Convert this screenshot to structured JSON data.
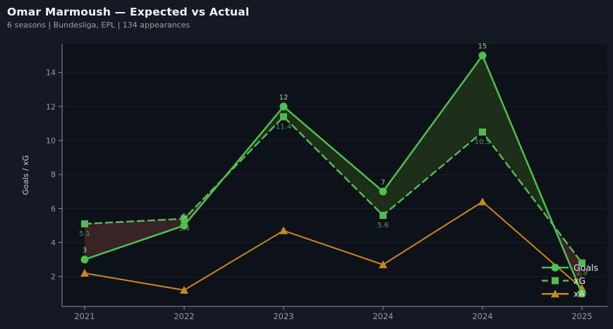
{
  "header": {
    "title": "Omar Marmoush — Expected vs Actual",
    "subtitle": "6 seasons | Bundesliga, EPL | 134 appearances"
  },
  "colors": {
    "background": "#141923",
    "plot_bg": "#0d1118",
    "grid": "#1a2029",
    "spine": "#8a919c",
    "tick_text": "#939aa6",
    "axis_label": "#c6ccd4",
    "title": "#f2f4f7",
    "subtitle": "#98a0aa",
    "legend_text": "#e6e9ed",
    "goals_label": "#8fe08f",
    "xg_label": "#4f9e4f"
  },
  "chart_data": {
    "type": "line",
    "title": "Omar Marmoush — Expected vs Actual",
    "subtitle": "6 seasons | Bundesliga, EPL | 134 appearances",
    "xlabel": "",
    "ylabel": "Goals / xG",
    "categories": [
      "2021",
      "2022",
      "2023",
      "2024",
      "2024",
      "2025"
    ],
    "series": [
      {
        "name": "Goals",
        "values": [
          3,
          5,
          12,
          7,
          15,
          1
        ],
        "labels": [
          "3",
          "5",
          "12",
          "7",
          "15",
          ""
        ],
        "color": "#4ec04e",
        "marker": "circle",
        "line_style": "solid",
        "label_placement": "above"
      },
      {
        "name": "xG",
        "values": [
          5.1,
          5.4,
          11.4,
          5.6,
          10.5,
          2.8
        ],
        "labels": [
          "5.1",
          "5.4",
          "11.4",
          "5.6",
          "10.5",
          "2.8"
        ],
        "color": "#55b755",
        "marker": "square",
        "line_style": "dashed",
        "label_placement": "below"
      },
      {
        "name": "xA",
        "values": [
          2.2,
          1.2,
          4.7,
          2.7,
          6.4,
          1.3
        ],
        "labels": [
          "",
          "",
          "",
          "",
          "",
          ""
        ],
        "color": "#c8871f",
        "marker": "triangle",
        "line_style": "solid",
        "label_placement": "none"
      }
    ],
    "yticks": [
      2,
      4,
      6,
      8,
      10,
      12,
      14
    ],
    "ylim": [
      0.2,
      15.75
    ],
    "grid": true,
    "legend_position": "bottom-right",
    "fills": {
      "between": [
        "Goals",
        "xG"
      ],
      "over_color": "#1d2f19",
      "under_color": "#3a2325"
    }
  }
}
